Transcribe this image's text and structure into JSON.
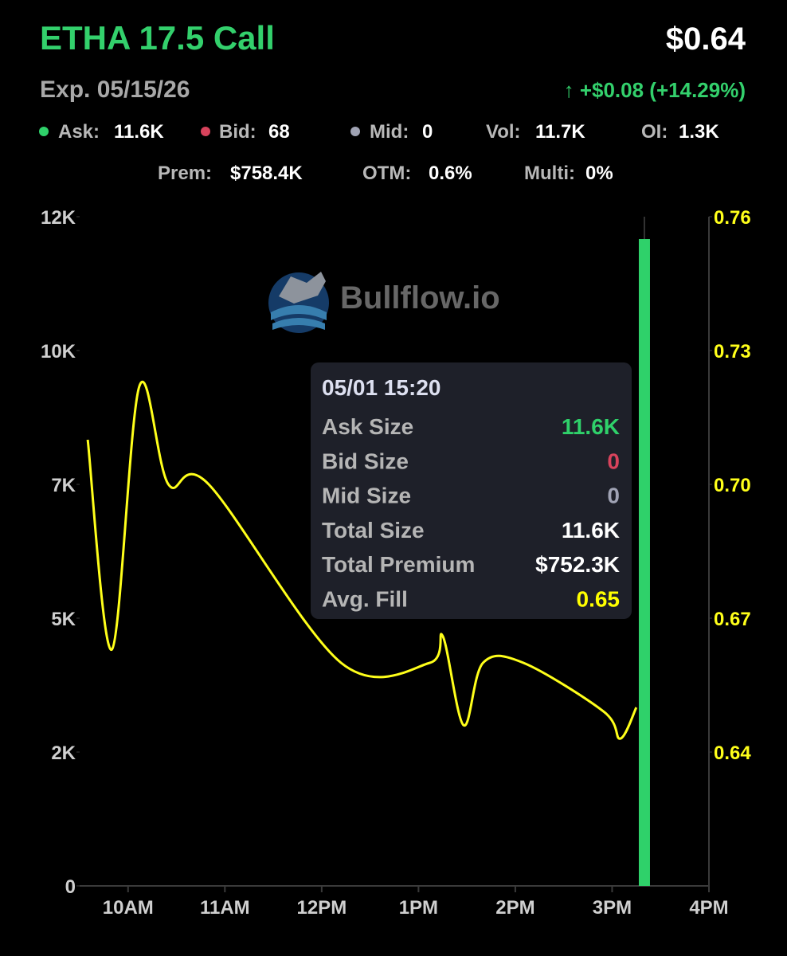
{
  "header": {
    "title": "ETHA 17.5 Call",
    "price": "$0.64",
    "expiry": "Exp. 05/15/26",
    "change": "↑ +$0.08 (+14.29%)"
  },
  "stats": [
    {
      "label": "Ask:",
      "value": "11.6K",
      "dot": "#2fd16a"
    },
    {
      "label": "Bid:",
      "value": "68",
      "dot": "#d8435c"
    },
    {
      "label": "Mid:",
      "value": "0",
      "dot": "#a0a3b4"
    },
    {
      "label": "Vol:",
      "value": "11.7K"
    },
    {
      "label": "OI:",
      "value": "1.3K"
    },
    {
      "label": "Prem:",
      "value": "$758.4K"
    },
    {
      "label": "OTM:",
      "value": "0.6%"
    },
    {
      "label": "Multi:",
      "value": "0%"
    }
  ],
  "watermark": "Bullflow.io",
  "tooltip": {
    "title": "05/01 15:20",
    "rows": [
      {
        "label": "Ask Size",
        "value": "11.6K",
        "color": "#2fd16a"
      },
      {
        "label": "Bid Size",
        "value": "0",
        "color": "#d8435c"
      },
      {
        "label": "Mid Size",
        "value": "0",
        "color": "#a0a3b4"
      },
      {
        "label": "Total Size",
        "value": "11.6K",
        "color": "#ffffff"
      },
      {
        "label": "Total Premium",
        "value": "$752.3K",
        "color": "#ffffff"
      },
      {
        "label": "Avg. Fill",
        "value": "0.65",
        "color": "#ffff00"
      }
    ]
  },
  "chart_data": {
    "type": "bar-line",
    "xlim": [
      "09:30",
      "16:00"
    ],
    "xticks": [
      {
        "value": "10:00",
        "label": "10AM"
      },
      {
        "value": "11:00",
        "label": "11AM"
      },
      {
        "value": "12:00",
        "label": "12PM"
      },
      {
        "value": "13:00",
        "label": "1PM"
      },
      {
        "value": "14:00",
        "label": "2PM"
      },
      {
        "value": "15:00",
        "label": "3PM"
      },
      {
        "value": "16:00",
        "label": "4PM"
      }
    ],
    "ylim": [
      0,
      12000
    ],
    "yticks": [
      0,
      {
        "value": 2400,
        "label": "2K"
      },
      {
        "value": 4800,
        "label": "5K"
      },
      {
        "value": 7200,
        "label": "7K"
      },
      {
        "value": 9600,
        "label": "10K"
      },
      {
        "value": 12000,
        "label": "12K"
      }
    ],
    "y2lim": [
      0.61,
      0.76
    ],
    "y2ticks": [
      0.64,
      0.67,
      {
        "value": 0.7,
        "label": "0.70"
      },
      0.73,
      0.76
    ],
    "series": [
      {
        "type": "bar",
        "color": "#2fd16a",
        "x": [
          "15:20"
        ],
        "values": [
          11600
        ]
      },
      {
        "type": "line",
        "axis": "y2",
        "color": "#ffff1a",
        "x": [
          "09:35",
          "09:50",
          "10:07",
          "10:25",
          "10:50",
          "12:12",
          "13:07",
          "13:15",
          "13:28",
          "13:40",
          "14:05",
          "14:55",
          "15:05",
          "15:15"
        ],
        "values": [
          0.71,
          0.663,
          0.722,
          0.7,
          0.7,
          0.66,
          0.66,
          0.666,
          0.646,
          0.66,
          0.66,
          0.649,
          0.643,
          0.65
        ]
      }
    ]
  }
}
